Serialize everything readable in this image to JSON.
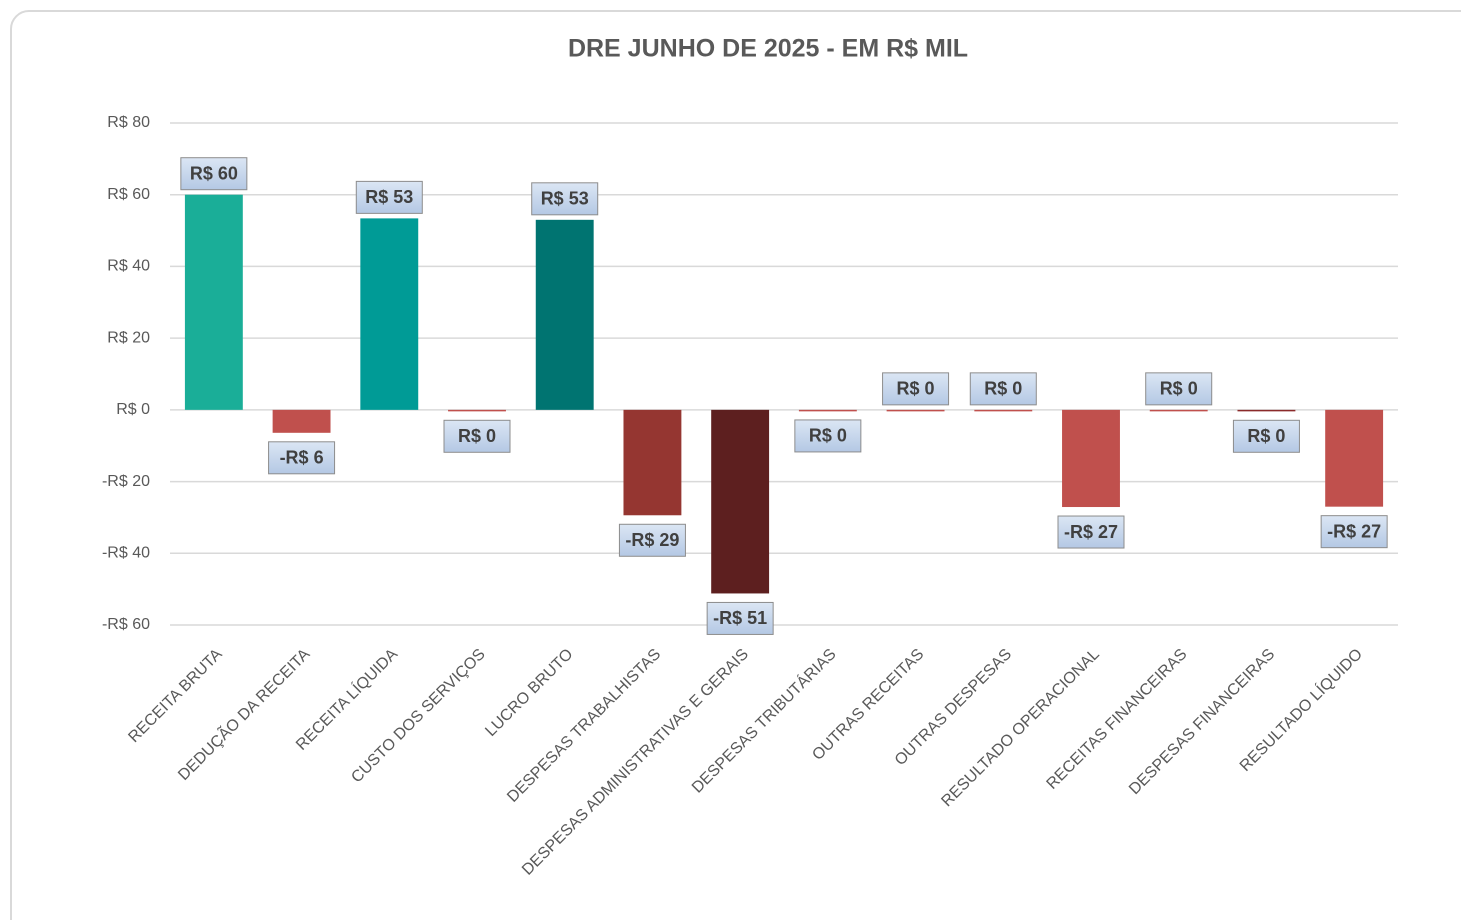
{
  "chart_data": {
    "type": "bar",
    "title": "DRE JUNHO DE 2025 - EM R$ MIL",
    "categories": [
      "RECEITA BRUTA",
      "DEDUÇÃO DA RECEITA",
      "RECEITA LÍQUIDA",
      "CUSTO DOS SERVIÇOS",
      "LUCRO BRUTO",
      "DESPESAS TRABALHISTAS",
      "DESPESAS ADMINISTRATIVAS E GERAIS",
      "DESPESAS TRIBUTÁRIAS",
      "OUTRAS RECEITAS",
      "OUTRAS DESPESAS",
      "RESULTADO OPERACIONAL",
      "RECEITAS FINANCEIRAS",
      "DESPESAS FINANCEIRAS",
      "RESULTADO LÍQUIDO"
    ],
    "values": [
      60,
      -6.4,
      53.4,
      -0.4,
      53,
      -29.4,
      -51.2,
      -0.3,
      0,
      0,
      -27.1,
      0,
      -0.4,
      -27
    ],
    "value_labels": [
      "R$ 60",
      "-R$ 6",
      "R$ 53",
      "R$ 0",
      "R$ 53",
      "-R$ 29",
      "-R$ 51",
      "R$ 0",
      "R$ 0",
      "R$ 0",
      "-R$ 27",
      "R$ 0",
      "R$ 0",
      "-R$ 27"
    ],
    "colors": [
      "#1aae98",
      "#c0504d",
      "#009b96",
      "#c0504d",
      "#007471",
      "#953631",
      "#5d1f1f",
      "#c0504d",
      "#c0504d",
      "#c0504d",
      "#c0504d",
      "#c0504d",
      "#8b2a2a",
      "#c0504d"
    ],
    "ylim": [
      -60,
      80
    ],
    "yticks": [
      {
        "value": -60,
        "label": "-R$ 60"
      },
      {
        "value": -40,
        "label": "-R$ 40"
      },
      {
        "value": -20,
        "label": "-R$ 20"
      },
      {
        "value": 0,
        "label": "R$ 0"
      },
      {
        "value": 20,
        "label": "R$ 20"
      },
      {
        "value": 40,
        "label": "R$ 40"
      },
      {
        "value": 60,
        "label": "R$ 60"
      },
      {
        "value": 80,
        "label": "R$ 80"
      }
    ],
    "grid": true
  }
}
